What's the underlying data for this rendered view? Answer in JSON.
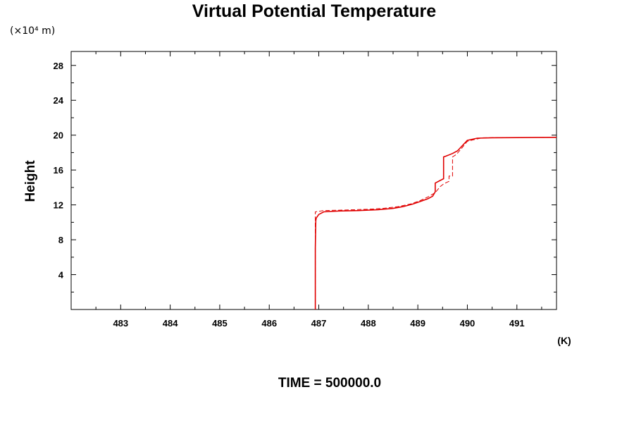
{
  "chart_data": {
    "type": "line",
    "title": "Virtual Potential Temperature",
    "ylabel": "Height",
    "y_scale_label": "(×10⁴ m)",
    "x_unit_label": "(K)",
    "footer": "TIME = 500000.0",
    "xlim": [
      482.0,
      491.8
    ],
    "ylim": [
      0.0,
      29.6
    ],
    "x_ticks": [
      483,
      484,
      485,
      486,
      487,
      488,
      489,
      490,
      491
    ],
    "y_ticks": [
      4,
      8,
      12,
      16,
      20,
      24,
      28
    ],
    "grid": false,
    "line_color": "#e00000",
    "series": [
      {
        "style": "solid",
        "x": [
          486.93,
          486.93,
          486.94,
          486.95,
          487.0,
          487.1,
          487.4,
          487.8,
          488.2,
          488.5,
          488.7,
          488.9,
          489.05,
          489.2,
          489.3,
          489.35,
          489.35,
          489.45,
          489.52,
          489.52,
          489.57,
          489.7,
          489.8,
          489.9,
          490.0,
          490.2,
          490.5,
          491.0,
          491.5,
          491.8
        ],
        "y": [
          0.0,
          7.0,
          10.2,
          10.5,
          10.9,
          11.2,
          11.3,
          11.35,
          11.45,
          11.6,
          11.8,
          12.1,
          12.4,
          12.7,
          13.0,
          13.5,
          14.5,
          14.8,
          15.0,
          17.5,
          17.6,
          17.9,
          18.2,
          18.8,
          19.4,
          19.65,
          19.7,
          19.72,
          19.74,
          19.75
        ]
      },
      {
        "style": "dashed",
        "x": [
          486.93,
          486.93,
          486.93,
          487.1,
          487.5,
          488.0,
          488.3,
          488.6,
          488.85,
          489.05,
          489.2,
          489.35,
          489.45,
          489.52,
          489.63,
          489.63,
          489.7,
          489.7,
          489.78,
          489.9,
          490.0,
          490.3,
          490.8,
          491.8
        ],
        "y": [
          0.0,
          10.0,
          11.2,
          11.35,
          11.4,
          11.5,
          11.6,
          11.8,
          12.1,
          12.5,
          12.9,
          13.4,
          14.1,
          14.4,
          14.7,
          15.3,
          15.3,
          17.5,
          17.8,
          18.6,
          19.3,
          19.7,
          19.72,
          19.75
        ]
      }
    ]
  }
}
